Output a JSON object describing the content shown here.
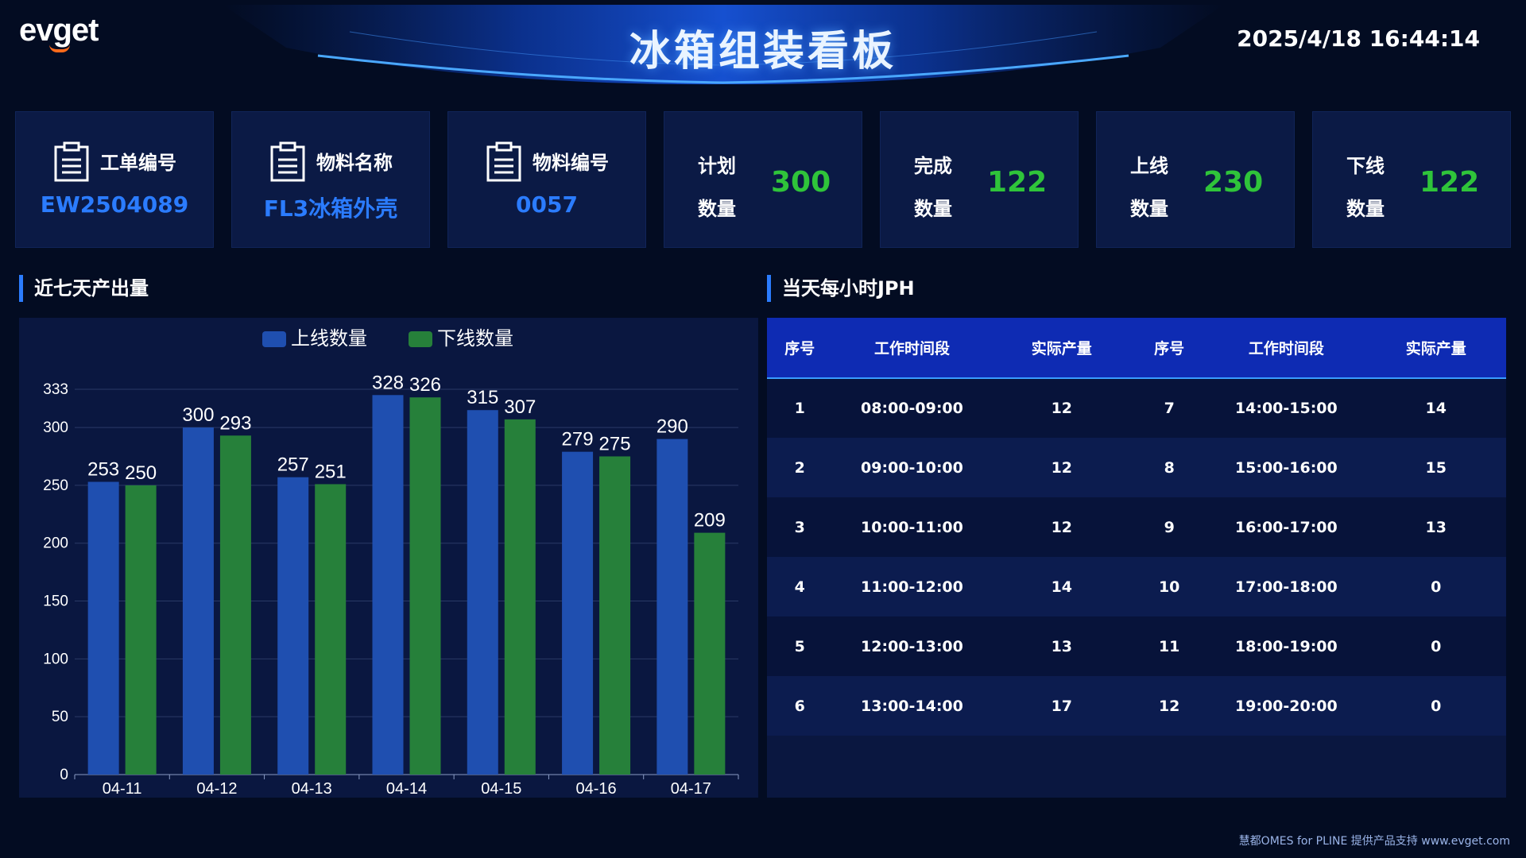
{
  "header": {
    "logo": "evget",
    "title": "冰箱组装看板",
    "datetime": "2025/4/18 16:44:14"
  },
  "kpi": {
    "work_order": {
      "label": "工单编号",
      "value": "EW2504089"
    },
    "material_name": {
      "label": "物料名称",
      "value": "FL3冰箱外壳"
    },
    "material_code": {
      "label": "物料编号",
      "value": "0057"
    },
    "plan": {
      "label1": "计划",
      "label2": "数量",
      "value": "300"
    },
    "done": {
      "label1": "完成",
      "label2": "数量",
      "value": "122"
    },
    "online": {
      "label1": "上线",
      "label2": "数量",
      "value": "230"
    },
    "offline": {
      "label1": "下线",
      "label2": "数量",
      "value": "122"
    }
  },
  "sections": {
    "chart_title": "近七天产出量",
    "table_title": "当天每小时JPH"
  },
  "chart_data": {
    "type": "bar",
    "categories": [
      "04-11",
      "04-12",
      "04-13",
      "04-14",
      "04-15",
      "04-16",
      "04-17"
    ],
    "series": [
      {
        "name": "上线数量",
        "values": [
          253,
          300,
          257,
          328,
          315,
          279,
          290
        ],
        "color": "#1f4fb0"
      },
      {
        "name": "下线数量",
        "values": [
          250,
          293,
          251,
          326,
          307,
          275,
          209
        ],
        "color": "#26803a"
      }
    ],
    "yticks": [
      0,
      50,
      100,
      150,
      200,
      250,
      300,
      333
    ],
    "ylim": [
      0,
      333
    ],
    "legend": "top-center",
    "grid": true
  },
  "table": {
    "headers": [
      "序号",
      "工作时间段",
      "实际产量",
      "序号",
      "工作时间段",
      "实际产量"
    ],
    "rows": [
      [
        "1",
        "08:00-09:00",
        "12",
        "7",
        "14:00-15:00",
        "14"
      ],
      [
        "2",
        "09:00-10:00",
        "12",
        "8",
        "15:00-16:00",
        "15"
      ],
      [
        "3",
        "10:00-11:00",
        "12",
        "9",
        "16:00-17:00",
        "13"
      ],
      [
        "4",
        "11:00-12:00",
        "14",
        "10",
        "17:00-18:00",
        "0"
      ],
      [
        "5",
        "12:00-13:00",
        "13",
        "11",
        "18:00-19:00",
        "0"
      ],
      [
        "6",
        "13:00-14:00",
        "17",
        "12",
        "19:00-20:00",
        "0"
      ]
    ]
  },
  "footer": "慧都OMES for PLINE 提供产品支持 www.evget.com"
}
